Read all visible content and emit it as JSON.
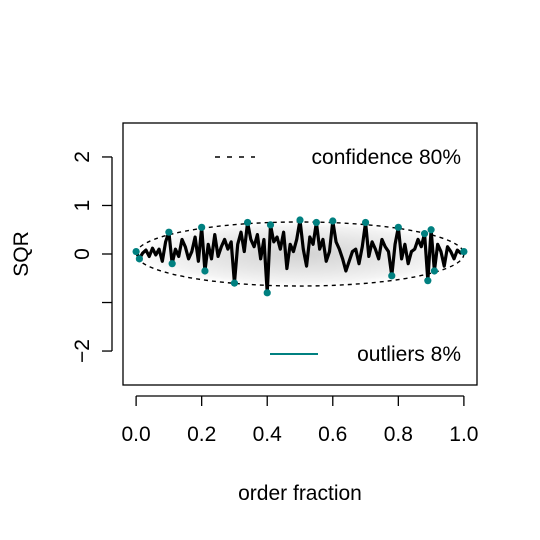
{
  "chart_data": {
    "type": "line",
    "title": "",
    "xlabel": "order fraction",
    "ylabel": "SQR",
    "xlim": [
      -0.04,
      1.04
    ],
    "ylim": [
      -2.7,
      2.7
    ],
    "x_ticks": [
      {
        "value": 0.0,
        "label": "0.0"
      },
      {
        "value": 0.2,
        "label": "0.2"
      },
      {
        "value": 0.4,
        "label": "0.4"
      },
      {
        "value": 0.6,
        "label": "0.6"
      },
      {
        "value": 0.8,
        "label": "0.8"
      },
      {
        "value": 1.0,
        "label": "1.0"
      }
    ],
    "y_ticks": [
      {
        "value": -2,
        "label": "−2"
      },
      {
        "value": -1,
        "label": ""
      },
      {
        "value": 0,
        "label": "0"
      },
      {
        "value": 1,
        "label": "1"
      },
      {
        "value": 2,
        "label": "2"
      }
    ],
    "legend": {
      "confidence": {
        "label": "confidence 80%",
        "position": "top-right",
        "style": "dashed"
      },
      "outliers": {
        "label": "outliers 8%",
        "position": "bottom-right",
        "color": "#008080"
      }
    },
    "confidence_band": {
      "center": 0,
      "half_height": 0.66,
      "x_range": [
        0,
        1
      ]
    },
    "series": [
      {
        "color": "#000000",
        "outlier_color": "#008080",
        "x": [
          0.0,
          0.01,
          0.02,
          0.03,
          0.04,
          0.05,
          0.06,
          0.07,
          0.08,
          0.09,
          0.1,
          0.11,
          0.12,
          0.13,
          0.14,
          0.15,
          0.16,
          0.17,
          0.18,
          0.19,
          0.2,
          0.21,
          0.22,
          0.23,
          0.24,
          0.25,
          0.26,
          0.27,
          0.28,
          0.29,
          0.3,
          0.31,
          0.32,
          0.33,
          0.34,
          0.35,
          0.36,
          0.37,
          0.38,
          0.39,
          0.4,
          0.41,
          0.42,
          0.43,
          0.44,
          0.45,
          0.46,
          0.47,
          0.48,
          0.49,
          0.5,
          0.51,
          0.52,
          0.53,
          0.54,
          0.55,
          0.56,
          0.57,
          0.58,
          0.59,
          0.6,
          0.61,
          0.62,
          0.63,
          0.64,
          0.65,
          0.66,
          0.67,
          0.68,
          0.69,
          0.7,
          0.71,
          0.72,
          0.73,
          0.74,
          0.75,
          0.76,
          0.77,
          0.78,
          0.79,
          0.8,
          0.81,
          0.82,
          0.83,
          0.84,
          0.85,
          0.86,
          0.87,
          0.88,
          0.89,
          0.9,
          0.91,
          0.92,
          0.93,
          0.94,
          0.95,
          0.96,
          0.97,
          0.98,
          0.99,
          1.0
        ],
        "y": [
          0.05,
          -0.1,
          0.02,
          0.08,
          -0.05,
          0.12,
          -0.02,
          0.1,
          -0.15,
          0.25,
          0.45,
          -0.2,
          0.1,
          -0.05,
          0.3,
          0.15,
          -0.1,
          0.05,
          0.35,
          -0.15,
          0.55,
          -0.35,
          0.2,
          -0.1,
          0.4,
          -0.05,
          0.15,
          0.3,
          0.1,
          0.25,
          -0.6,
          0.2,
          0.45,
          0.05,
          0.65,
          0.3,
          0.15,
          0.4,
          -0.1,
          0.3,
          -0.8,
          0.6,
          0.25,
          0.35,
          0.1,
          0.45,
          -0.3,
          0.2,
          0.05,
          0.3,
          0.7,
          0.1,
          -0.25,
          0.35,
          0.2,
          0.65,
          0.1,
          0.3,
          -0.15,
          0.05,
          0.68,
          0.25,
          0.1,
          -0.1,
          -0.35,
          -0.15,
          0.05,
          0.1,
          -0.2,
          0.15,
          0.65,
          -0.05,
          0.25,
          0.1,
          -0.1,
          0.3,
          0.15,
          0.05,
          -0.45,
          0.2,
          0.55,
          -0.1,
          0.2,
          -0.2,
          0.05,
          0.1,
          0.3,
          0.15,
          0.42,
          -0.55,
          0.5,
          -0.35,
          0.2,
          0.05,
          -0.25,
          0.15,
          0.05,
          -0.1,
          0.08,
          0.02,
          0.05
        ],
        "outliers": [
          {
            "x": 0.0,
            "y": 0.05
          },
          {
            "x": 0.01,
            "y": -0.1
          },
          {
            "x": 0.1,
            "y": 0.45
          },
          {
            "x": 0.11,
            "y": -0.2
          },
          {
            "x": 0.2,
            "y": 0.55
          },
          {
            "x": 0.21,
            "y": -0.35
          },
          {
            "x": 0.3,
            "y": -0.6
          },
          {
            "x": 0.34,
            "y": 0.65
          },
          {
            "x": 0.4,
            "y": -0.8
          },
          {
            "x": 0.41,
            "y": 0.6
          },
          {
            "x": 0.5,
            "y": 0.7
          },
          {
            "x": 0.55,
            "y": 0.65
          },
          {
            "x": 0.6,
            "y": 0.68
          },
          {
            "x": 0.7,
            "y": 0.65
          },
          {
            "x": 0.78,
            "y": -0.45
          },
          {
            "x": 0.8,
            "y": 0.55
          },
          {
            "x": 0.88,
            "y": 0.42
          },
          {
            "x": 0.89,
            "y": -0.55
          },
          {
            "x": 0.9,
            "y": 0.5
          },
          {
            "x": 0.91,
            "y": -0.35
          },
          {
            "x": 1.0,
            "y": 0.05
          }
        ]
      }
    ]
  }
}
